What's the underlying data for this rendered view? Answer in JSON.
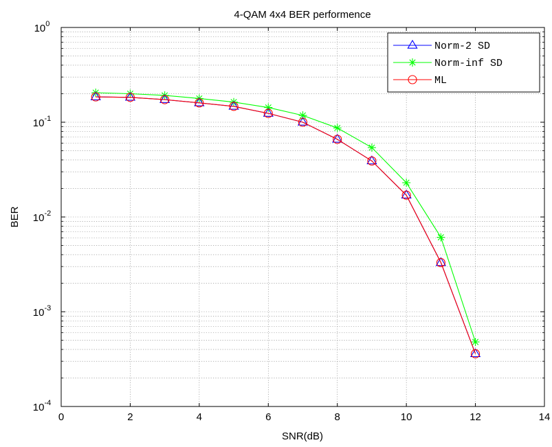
{
  "chart_data": {
    "type": "line",
    "title": "4-QAM 4x4 BER performence",
    "xlabel": "SNR(dB)",
    "ylabel": "BER",
    "xlim": [
      0,
      14
    ],
    "ylim": [
      0.0001,
      1
    ],
    "yscale": "log",
    "grid": true,
    "legend_position": "top-right",
    "x_ticks": [
      0,
      2,
      4,
      6,
      8,
      10,
      12,
      14
    ],
    "x_tick_labels": [
      "0",
      "2",
      "4",
      "6",
      "8",
      "10",
      "12",
      "14"
    ],
    "y_tick_labels": [
      {
        "base": "10",
        "exp": "0"
      },
      {
        "base": "10",
        "exp": "-1"
      },
      {
        "base": "10",
        "exp": "-2"
      },
      {
        "base": "10",
        "exp": "-3"
      },
      {
        "base": "10",
        "exp": "-4"
      }
    ],
    "x": [
      1,
      2,
      3,
      4,
      5,
      6,
      7,
      8,
      9,
      10,
      11,
      12
    ],
    "series": [
      {
        "name": "Norm-2 SD",
        "color": "#0000ff",
        "marker": "triangle",
        "values": [
          0.185,
          0.183,
          0.173,
          0.16,
          0.147,
          0.124,
          0.1,
          0.066,
          0.039,
          0.017,
          0.0033,
          0.00036
        ]
      },
      {
        "name": "Norm-inf SD",
        "color": "#00ff00",
        "marker": "star",
        "values": [
          0.205,
          0.2,
          0.192,
          0.178,
          0.163,
          0.143,
          0.118,
          0.087,
          0.054,
          0.023,
          0.0061,
          0.00048
        ]
      },
      {
        "name": "ML",
        "color": "#ff0000",
        "marker": "circle",
        "values": [
          0.185,
          0.183,
          0.173,
          0.16,
          0.147,
          0.124,
          0.1,
          0.066,
          0.039,
          0.017,
          0.0033,
          0.00036
        ]
      }
    ]
  }
}
